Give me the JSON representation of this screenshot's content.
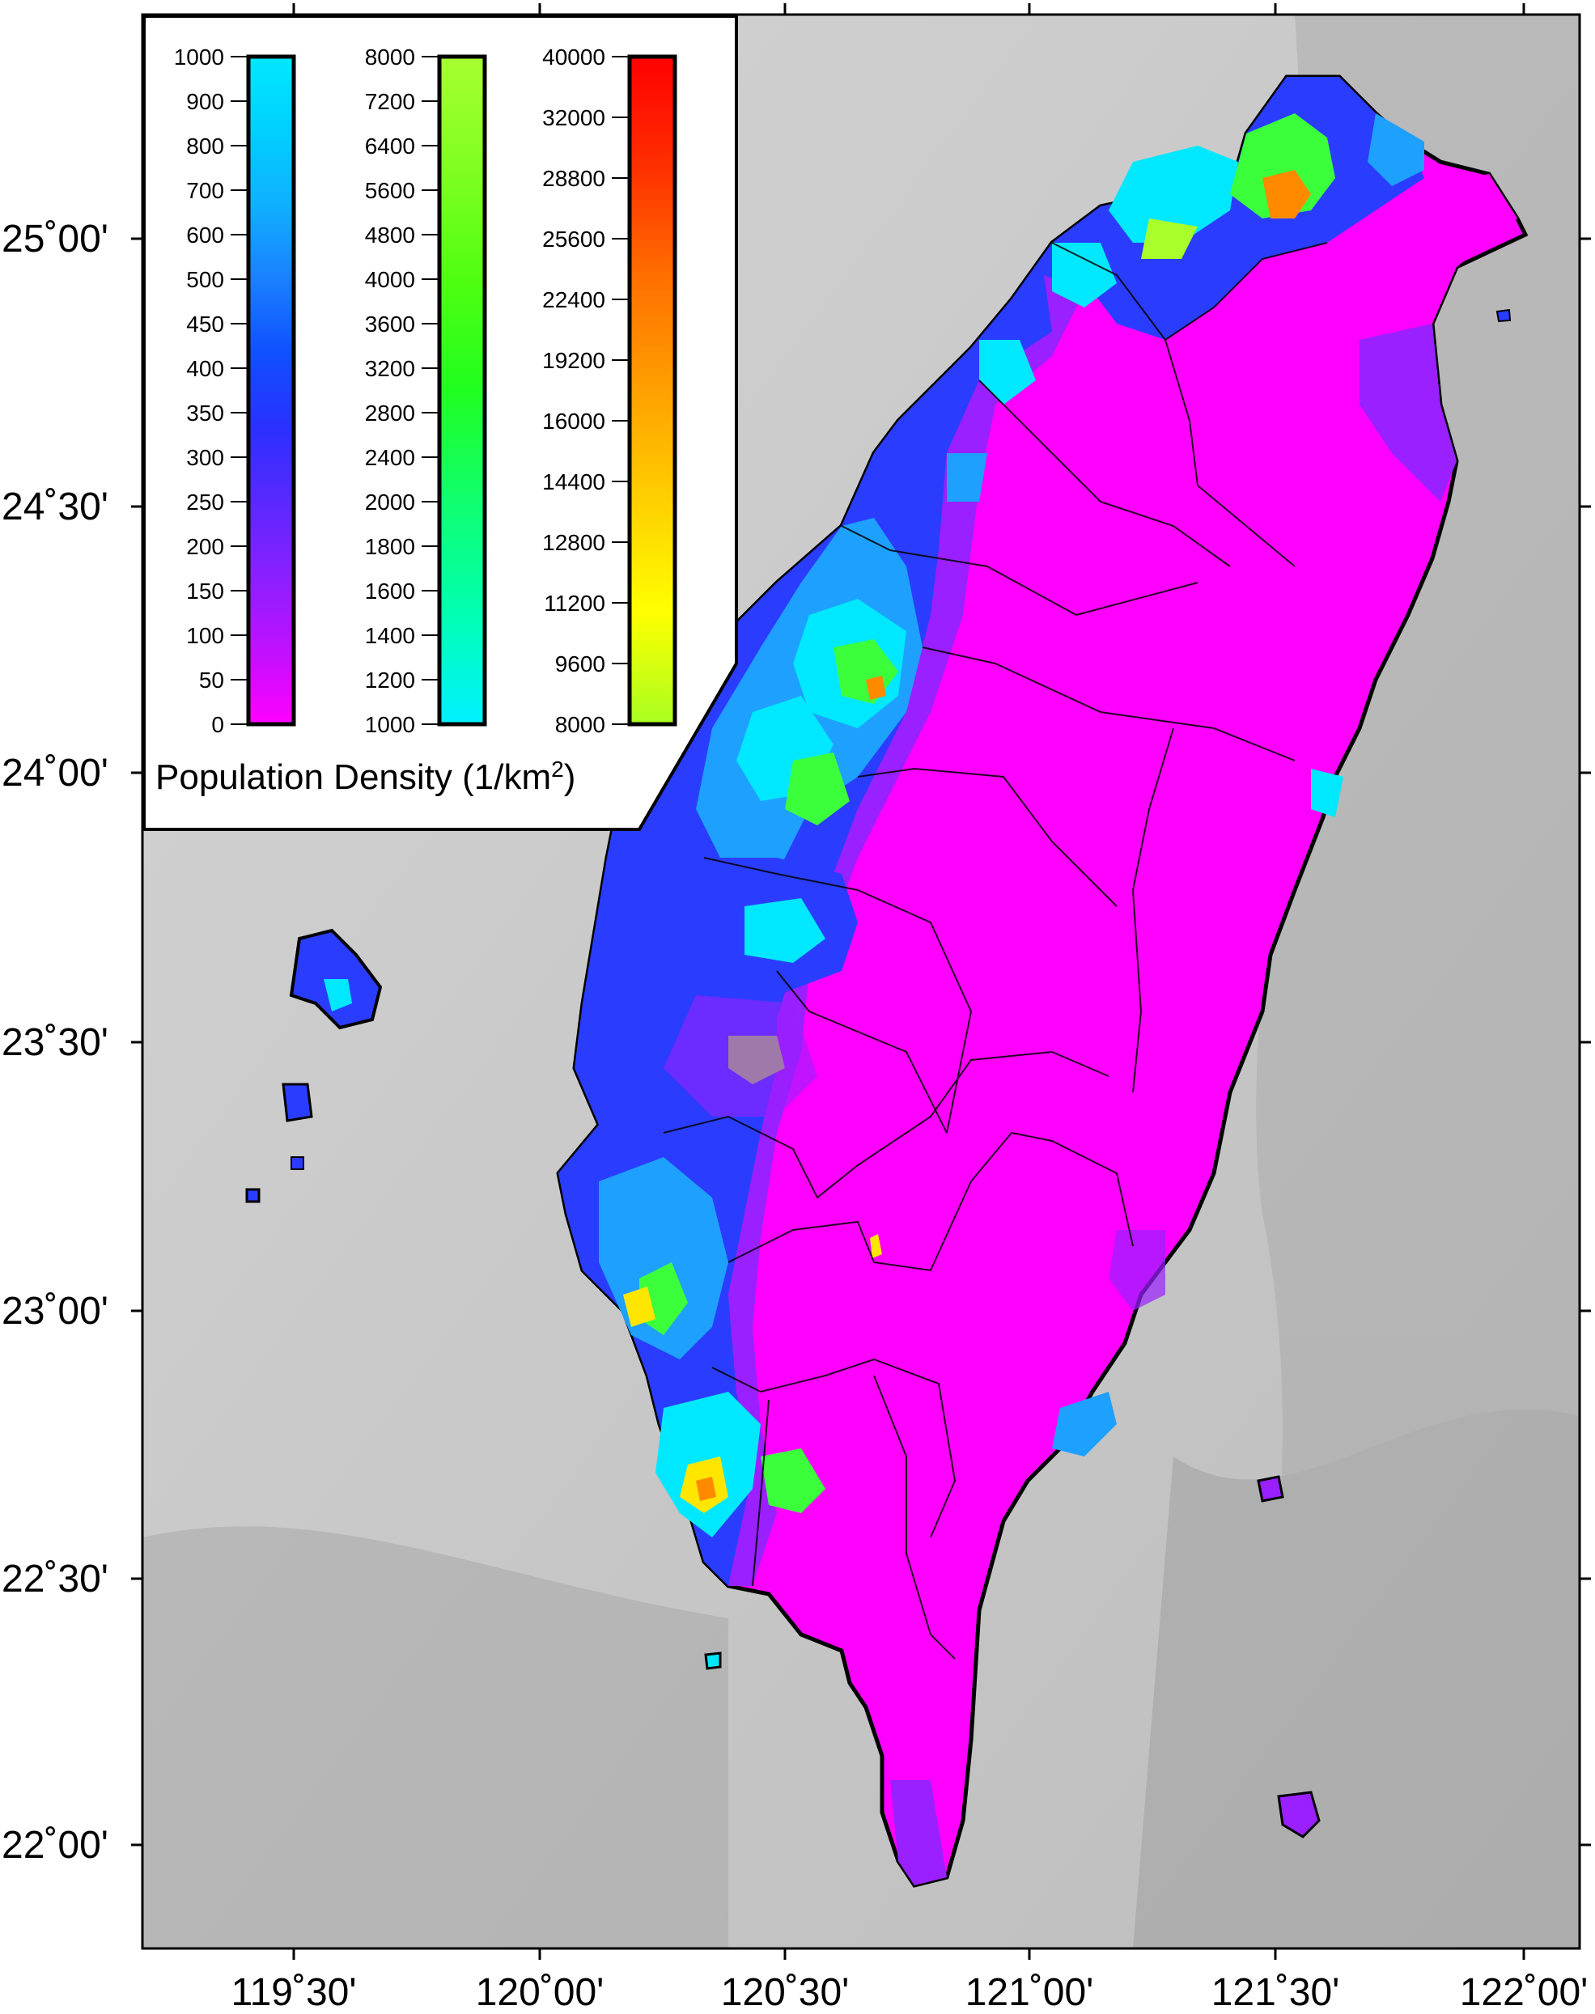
{
  "map": {
    "x_labels": [
      "119˚30'",
      "120˚00'",
      "120˚30'",
      "121˚00'",
      "121˚30'",
      "122˚00'"
    ],
    "y_labels": [
      "25˚00'",
      "24˚30'",
      "24˚00'",
      "23˚30'",
      "23˚00'",
      "22˚30'",
      "22˚00'"
    ],
    "colors": {
      "sea": "#cfcfcf",
      "magenta": "#ff00ff",
      "violet": "#9a20ff",
      "blue": "#2a3dff",
      "sky": "#1ea0ff",
      "cyan": "#00e8ff",
      "green": "#3cff3c",
      "lime": "#a8ff2a",
      "yellow": "#ffe600",
      "orange": "#ff8a00"
    }
  },
  "legend": {
    "title_prefix": "Population Density (1/km",
    "title_sup": "2",
    "title_suffix": ")",
    "bars": [
      {
        "name": "low",
        "min": 0,
        "max": 1000,
        "tick_labels": [
          "1000",
          "900",
          "800",
          "700",
          "600",
          "500",
          "450",
          "400",
          "350",
          "300",
          "250",
          "200",
          "150",
          "100",
          "50",
          "0"
        ],
        "tick_values": [
          1000,
          900,
          800,
          700,
          600,
          500,
          450,
          400,
          350,
          300,
          250,
          200,
          150,
          100,
          50,
          0
        ],
        "stops": [
          "#ff00ff",
          "#c010ff",
          "#8a20ff",
          "#5a28ff",
          "#2a30ff",
          "#1050ff",
          "#1a80ff",
          "#10b0ff",
          "#00d0ff",
          "#00e8ff"
        ]
      },
      {
        "name": "mid",
        "min": 1000,
        "max": 8000,
        "tick_labels": [
          "8000",
          "7200",
          "6400",
          "5600",
          "4800",
          "4000",
          "3600",
          "3200",
          "2800",
          "2400",
          "2000",
          "1800",
          "1600",
          "1400",
          "1200",
          "1000"
        ],
        "tick_values": [
          8000,
          7200,
          6400,
          5600,
          4800,
          4000,
          3600,
          3200,
          2800,
          2400,
          2000,
          1800,
          1600,
          1400,
          1200,
          1000
        ],
        "stops": [
          "#00f0ff",
          "#00ffb0",
          "#10ff70",
          "#20ff20",
          "#50ff10",
          "#80ff20",
          "#a8ff30"
        ]
      },
      {
        "name": "high",
        "min": 8000,
        "max": 40000,
        "tick_labels": [
          "40000",
          "32000",
          "28800",
          "25600",
          "22400",
          "19200",
          "16000",
          "14400",
          "12800",
          "11200",
          "9600",
          "8000"
        ],
        "tick_values": [
          40000,
          32000,
          28800,
          25600,
          22400,
          19200,
          16000,
          14400,
          12800,
          11200,
          9600,
          8000
        ],
        "stops": [
          "#a8ff20",
          "#ffff00",
          "#ffd000",
          "#ffa000",
          "#ff7000",
          "#ff3000",
          "#ff0000"
        ]
      }
    ]
  }
}
